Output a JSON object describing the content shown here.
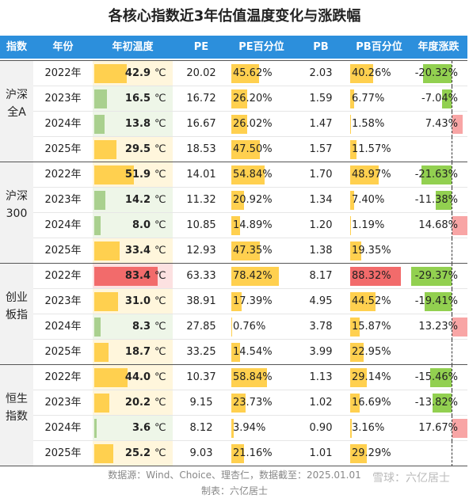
{
  "title": "各核心指数近3年估值温度变化与涨跌幅",
  "header": [
    "指数",
    "年份",
    "年初温度",
    "PE",
    "PE百分位",
    "PB",
    "PB百分位",
    "年度涨跌"
  ],
  "temp_unit": "℃",
  "groups": [
    {
      "name": [
        "沪深",
        "全A"
      ],
      "rows": [
        {
          "year": "2022年",
          "temp": {
            "value": 42.9,
            "label": "42.9",
            "color": "#ffd04f"
          },
          "pe": "20.02",
          "pe_pct": {
            "value": 45.62,
            "label": "45.62%",
            "color": "#ffd04f"
          },
          "pb": "2.03",
          "pb_pct": {
            "value": 40.26,
            "label": "40.26%",
            "color": "#ffd04f"
          },
          "change": {
            "value": -20.32,
            "label": "-20.32%",
            "color": "#92d050"
          }
        },
        {
          "year": "2023年",
          "temp": {
            "value": 16.5,
            "label": "16.5",
            "color": "#a9d08e"
          },
          "pe": "16.72",
          "pe_pct": {
            "value": 26.2,
            "label": "26.20%",
            "color": "#ffd04f"
          },
          "pb": "1.59",
          "pb_pct": {
            "value": 6.77,
            "label": "6.77%",
            "color": "#ffd04f"
          },
          "change": {
            "value": -7.04,
            "label": "-7.04%",
            "color": "#92d050"
          }
        },
        {
          "year": "2024年",
          "temp": {
            "value": 13.8,
            "label": "13.8",
            "color": "#a9d08e"
          },
          "pe": "16.67",
          "pe_pct": {
            "value": 26.02,
            "label": "26.02%",
            "color": "#ffd04f"
          },
          "pb": "1.47",
          "pb_pct": {
            "value": 1.58,
            "label": "1.58%",
            "color": "#ffd04f"
          },
          "change": {
            "value": 7.43,
            "label": "7.43%",
            "color": "#f8a5a5"
          }
        },
        {
          "year": "2025年",
          "temp": {
            "value": 29.5,
            "label": "29.5",
            "color": "#ffd04f"
          },
          "pe": "18.53",
          "pe_pct": {
            "value": 47.5,
            "label": "47.50%",
            "color": "#ffd04f"
          },
          "pb": "1.57",
          "pb_pct": {
            "value": 11.57,
            "label": "11.57%",
            "color": "#ffd04f"
          },
          "change": null
        }
      ]
    },
    {
      "name": [
        "沪深",
        "300"
      ],
      "rows": [
        {
          "year": "2022年",
          "temp": {
            "value": 51.9,
            "label": "51.9",
            "color": "#ffd04f"
          },
          "pe": "14.01",
          "pe_pct": {
            "value": 54.84,
            "label": "54.84%",
            "color": "#ffd04f"
          },
          "pb": "1.70",
          "pb_pct": {
            "value": 48.97,
            "label": "48.97%",
            "color": "#ffd04f"
          },
          "change": {
            "value": -21.63,
            "label": "-21.63%",
            "color": "#92d050"
          }
        },
        {
          "year": "2023年",
          "temp": {
            "value": 14.2,
            "label": "14.2",
            "color": "#a9d08e"
          },
          "pe": "11.32",
          "pe_pct": {
            "value": 20.92,
            "label": "20.92%",
            "color": "#ffd04f"
          },
          "pb": "1.34",
          "pb_pct": {
            "value": 7.4,
            "label": "7.40%",
            "color": "#ffd04f"
          },
          "change": {
            "value": -11.38,
            "label": "-11.38%",
            "color": "#92d050"
          }
        },
        {
          "year": "2024年",
          "temp": {
            "value": 8,
            "label": "8.0",
            "color": "#a9d08e"
          },
          "pe": "10.85",
          "pe_pct": {
            "value": 14.89,
            "label": "14.89%",
            "color": "#ffd04f"
          },
          "pb": "1.20",
          "pb_pct": {
            "value": 1.19,
            "label": "1.19%",
            "color": "#ffd04f"
          },
          "change": {
            "value": 14.68,
            "label": "14.68%",
            "color": "#f8a5a5"
          }
        },
        {
          "year": "2025年",
          "temp": {
            "value": 33.4,
            "label": "33.4",
            "color": "#ffd04f"
          },
          "pe": "12.93",
          "pe_pct": {
            "value": 47.35,
            "label": "47.35%",
            "color": "#ffd04f"
          },
          "pb": "1.38",
          "pb_pct": {
            "value": 19.35,
            "label": "19.35%",
            "color": "#ffd04f"
          },
          "change": null
        }
      ]
    },
    {
      "name": [
        "创业",
        "板指"
      ],
      "rows": [
        {
          "year": "2022年",
          "temp": {
            "value": 83.4,
            "label": "83.4",
            "color": "#f26b6b"
          },
          "pe": "63.33",
          "pe_pct": {
            "value": 78.42,
            "label": "78.42%",
            "color": "#ffd04f"
          },
          "pb": "8.17",
          "pb_pct": {
            "value": 88.32,
            "label": "88.32%",
            "color": "#f26b6b"
          },
          "change": {
            "value": -29.37,
            "label": "-29.37%",
            "color": "#92d050"
          }
        },
        {
          "year": "2023年",
          "temp": {
            "value": 31,
            "label": "31.0",
            "color": "#ffd04f"
          },
          "pe": "38.91",
          "pe_pct": {
            "value": 17.39,
            "label": "17.39%",
            "color": "#ffd04f"
          },
          "pb": "4.95",
          "pb_pct": {
            "value": 44.52,
            "label": "44.52%",
            "color": "#ffd04f"
          },
          "change": {
            "value": -19.41,
            "label": "-19.41%",
            "color": "#92d050"
          }
        },
        {
          "year": "2024年",
          "temp": {
            "value": 8.3,
            "label": "8.3",
            "color": "#a9d08e"
          },
          "pe": "27.85",
          "pe_pct": {
            "value": 0.76,
            "label": "0.76%",
            "color": "#ffd04f"
          },
          "pb": "3.78",
          "pb_pct": {
            "value": 15.87,
            "label": "15.87%",
            "color": "#ffd04f"
          },
          "change": {
            "value": 13.23,
            "label": "13.23%",
            "color": "#f8a5a5"
          }
        },
        {
          "year": "2025年",
          "temp": {
            "value": 18.7,
            "label": "18.7",
            "color": "#ffd04f"
          },
          "pe": "33.25",
          "pe_pct": {
            "value": 14.54,
            "label": "14.54%",
            "color": "#ffd04f"
          },
          "pb": "3.99",
          "pb_pct": {
            "value": 22.95,
            "label": "22.95%",
            "color": "#ffd04f"
          },
          "change": null
        }
      ]
    },
    {
      "name": [
        "恒生",
        "指数"
      ],
      "rows": [
        {
          "year": "2022年",
          "temp": {
            "value": 44,
            "label": "44.0",
            "color": "#ffd04f"
          },
          "pe": "10.37",
          "pe_pct": {
            "value": 58.84,
            "label": "58.84%",
            "color": "#ffd04f"
          },
          "pb": "1.13",
          "pb_pct": {
            "value": 29.14,
            "label": "29.14%",
            "color": "#ffd04f"
          },
          "change": {
            "value": -15.46,
            "label": "-15.46%",
            "color": "#92d050"
          }
        },
        {
          "year": "2023年",
          "temp": {
            "value": 20.2,
            "label": "20.2",
            "color": "#ffd04f"
          },
          "pe": "9.15",
          "pe_pct": {
            "value": 23.73,
            "label": "23.73%",
            "color": "#ffd04f"
          },
          "pb": "1.02",
          "pb_pct": {
            "value": 16.69,
            "label": "16.69%",
            "color": "#ffd04f"
          },
          "change": {
            "value": -13.82,
            "label": "-13.82%",
            "color": "#92d050"
          }
        },
        {
          "year": "2024年",
          "temp": {
            "value": 3.6,
            "label": "3.6",
            "color": "#a9d08e"
          },
          "pe": "8.12",
          "pe_pct": {
            "value": 3.94,
            "label": "3.94%",
            "color": "#ffd04f"
          },
          "pb": "0.90",
          "pb_pct": {
            "value": 3.16,
            "label": "3.16%",
            "color": "#ffd04f"
          },
          "change": {
            "value": 17.67,
            "label": "17.67%",
            "color": "#f8a5a5"
          }
        },
        {
          "year": "2025年",
          "temp": {
            "value": 25.2,
            "label": "25.2",
            "color": "#ffd04f"
          },
          "pe": "9.03",
          "pe_pct": {
            "value": 21.16,
            "label": "21.16%",
            "color": "#ffd04f"
          },
          "pb": "1.01",
          "pb_pct": {
            "value": 29.29,
            "label": "29.29%",
            "color": "#ffd04f"
          },
          "change": null
        }
      ]
    }
  ],
  "footer": {
    "source": "数据源：Wind、Choice、理杏仁，数据截至：2025.01.01",
    "author": "制表：六亿居士",
    "watermark": "雪球：六亿居士"
  }
}
